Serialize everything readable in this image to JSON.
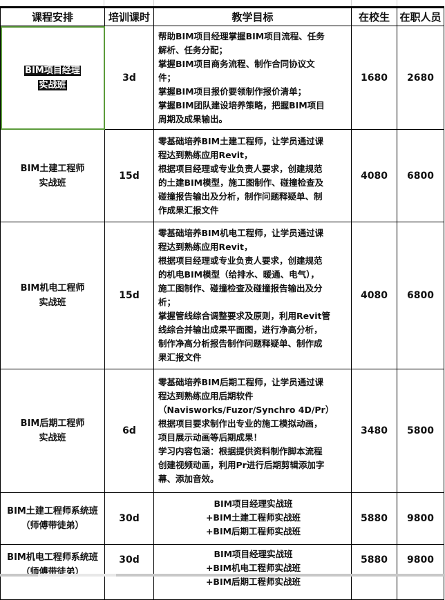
{
  "headers": [
    "课程安排",
    "培训课时",
    "教学目标",
    "在校生",
    "在职人员"
  ],
  "rows": [
    {
      "name": [
        "BIM项目经理",
        "实战班"
      ],
      "hours": "3d",
      "goals": [
        "帮助BIM项目经理掌握BIM项目流程、任务",
        "解析、任务分配；",
        "掌握BIM项目商务流程、制作合同协议文",
        "件；",
        "掌握BIM项目报价要领制作报价清单；",
        "掌握BIM团队建设培养策略，把握BIM项目",
        "周期及成果输出。"
      ],
      "student": "1680",
      "employee": "2680"
    },
    {
      "name": [
        "BIM土建工程师",
        "实战班"
      ],
      "hours": "15d",
      "goals": [
        "零基础培养BIM土建工程师，让学员通过课",
        "程达到熟练应用Revit，",
        "根据项目经理或专业负责人要求，创建规范",
        "的土建BIM模型，施工图制作、碰撞检查及",
        "碰撞报告输出及分析，制作问题释疑单、制",
        "作成果汇报文件"
      ],
      "student": "4080",
      "employee": "6800"
    },
    {
      "name": [
        "BIM机电工程师",
        "实战班"
      ],
      "hours": "15d",
      "goals": [
        "零基础培养BIM机电工程师，让学员通过课",
        "程达到熟练应用Revit，",
        "根据项目经理或专业负责人要求，创建规范",
        "的机电BIM模型（给排水、暖通、电气），",
        "施工图制作、碰撞检查及碰撞报告输出及分",
        "析；",
        "掌握管线综合调整要求及原则，利用Revit管",
        "线综合并输出成果平面图，进行净高分析，",
        "制作净高分析报告制作问题释疑单、制作成",
        "果汇报文件"
      ],
      "student": "4080",
      "employee": "6800"
    },
    {
      "name": [
        "BIM后期工程师",
        "实战班"
      ],
      "hours": "6d",
      "goals": [
        "零基础培养BIM后期工程师，让学员通过课",
        "程达到熟练应用后期软件",
        "（Navisworks/Fuzor/Synchro 4D/Pr）",
        "根据项目要求制作出专业的施工模拟动画，",
        "项目展示动画等后期成果！",
        "学习内容包涵：根据提供资料制作脚本流程",
        "创建视频动画，利用Pr进行后期剪辑添加字",
        "幕、添加音效。"
      ],
      "student": "3480",
      "employee": "5800"
    },
    {
      "name": [
        "BIM土建工程师系统班",
        "（师傅带徒弟）"
      ],
      "hours": "30d",
      "goals": [
        "BIM项目经理实战班",
        "+BIM土建工程师实战班",
        "+BIM后期工程师实战班"
      ],
      "student": "5880",
      "employee": "9800"
    },
    {
      "name": [
        "BIM机电工程师系统班",
        "（师傅带徒弟）"
      ],
      "hours": "30d",
      "goals": [
        "BIM项目经理实战班",
        "+BIM机电工程师实战班",
        "+BIM后期工程师实战班"
      ],
      "student": "5880",
      "employee": "9800"
    }
  ],
  "colors": {
    "selection_border": "#5b9b3a",
    "grid": "#000000"
  }
}
